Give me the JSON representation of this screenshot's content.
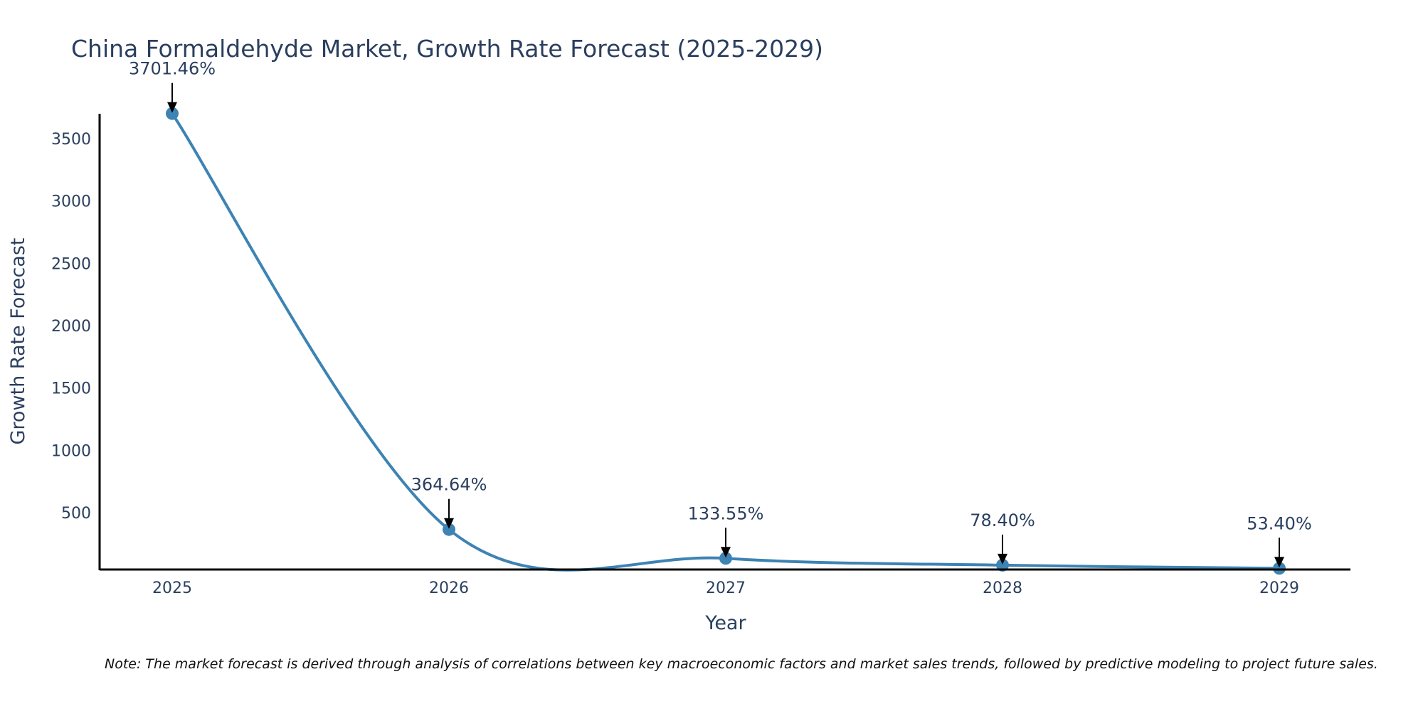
{
  "chart_data": {
    "type": "line",
    "title": "China Formaldehyde Market, Growth Rate Forecast (2025-2029)",
    "xlabel": "Year",
    "ylabel": "Growth Rate Forecast",
    "categories": [
      "2025",
      "2026",
      "2027",
      "2028",
      "2029"
    ],
    "series": [
      {
        "name": "Growth Rate Forecast",
        "values": [
          3701.46,
          364.64,
          133.55,
          78.4,
          53.4
        ],
        "color": "#3d83b3"
      }
    ],
    "annotations": [
      "3701.46%",
      "364.64%",
      "133.55%",
      "78.40%",
      "53.40%"
    ],
    "yticks": [
      500,
      1000,
      1500,
      2000,
      2500,
      3000,
      3500
    ],
    "ylim": [
      45,
      3700
    ],
    "grid": false,
    "line_shape": "spline",
    "note": "Note: The market forecast is derived through analysis of correlations between key macroeconomic factors and market sales trends, followed by predictive modeling to project future sales."
  }
}
